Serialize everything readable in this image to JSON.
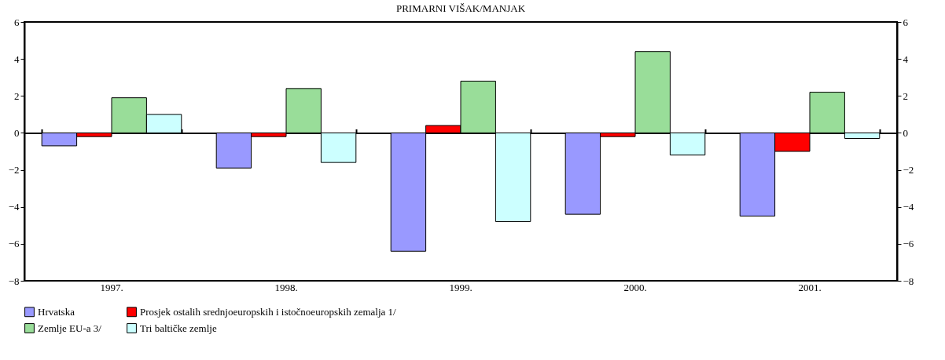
{
  "chart_data": {
    "type": "bar",
    "title": "PRIMARNI VIŠAK/MANJAK",
    "categories": [
      "1997.",
      "1998.",
      "1999.",
      "2000.",
      "2001."
    ],
    "series": [
      {
        "name": "Hrvatska",
        "color": "#9999ff",
        "values": [
          -0.7,
          -1.9,
          -6.4,
          -4.4,
          -4.5
        ]
      },
      {
        "name": "Prosjek ostalih srednjoeuropskih i istočnoeuropskih zemalja 1/",
        "color": "#ff0000",
        "values": [
          -0.2,
          -0.2,
          0.4,
          -0.2,
          -1.0
        ]
      },
      {
        "name": "Zemlje EU-a 3/",
        "color": "#99dd99",
        "values": [
          1.9,
          2.4,
          2.8,
          4.4,
          2.2
        ]
      },
      {
        "name": "Tri baltičke zemlje",
        "color": "#ccffff",
        "values": [
          1.0,
          -1.6,
          -4.8,
          -1.2,
          -0.3
        ]
      }
    ],
    "ylim": [
      -8,
      6
    ],
    "yticks": [
      -8,
      -6,
      -4,
      -2,
      0,
      2,
      4,
      6
    ],
    "y2lim": [
      -8,
      6
    ],
    "y2ticks": [
      -8,
      -6,
      -4,
      -2,
      0,
      2,
      4,
      6
    ],
    "legend": "bottom"
  }
}
